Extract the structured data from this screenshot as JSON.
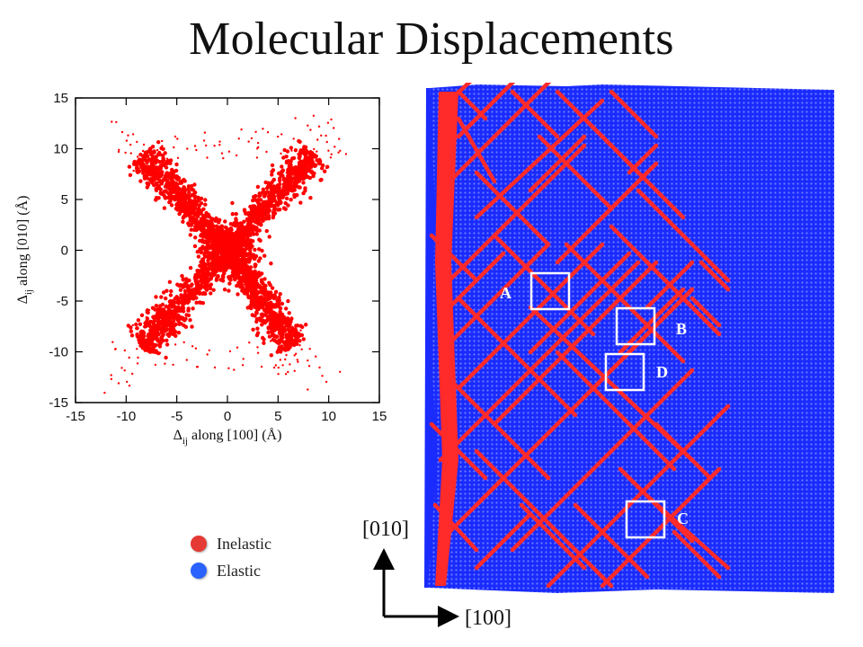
{
  "title": "Molecular Displacements",
  "legend": {
    "items": [
      {
        "label": "Inelastic",
        "color": "#e53935"
      },
      {
        "label": "Elastic",
        "color": "#2962ff"
      }
    ]
  },
  "directions": {
    "vertical_label": "[010]",
    "horizontal_label": "[100]"
  },
  "regions": [
    {
      "label": "A"
    },
    {
      "label": "B"
    },
    {
      "label": "C"
    },
    {
      "label": "D"
    }
  ],
  "colors": {
    "inelastic": "#ff2a2a",
    "elastic": "#1a2bff",
    "frame": "#000000",
    "box": "#ffffff"
  },
  "chart_data": {
    "type": "scatter",
    "xlabel_main": "Δ",
    "xlabel_sub": "ij",
    "xlabel_rest": " along [100] (Å)",
    "ylabel_main": "Δ",
    "ylabel_sub": "ij",
    "ylabel_rest": " along [010] (Å)",
    "xlim": [
      -15,
      15
    ],
    "ylim": [
      -15,
      15
    ],
    "xticks": [
      -15,
      -10,
      -5,
      0,
      5,
      10,
      15
    ],
    "yticks": [
      -15,
      -10,
      -5,
      0,
      5,
      10,
      15
    ],
    "grid": false,
    "series": [
      {
        "color": "#ff0000",
        "distribution": "X-shaped cluster along y = x and y = -x, dense near origin",
        "arm_extent_upper_left": [
          -8.5,
          9.5
        ],
        "arm_extent_upper_right": [
          8.5,
          9.5
        ],
        "arm_extent_lower_left": [
          -8.5,
          -9.5
        ],
        "arm_extent_lower_right": [
          6.5,
          -9.5
        ]
      }
    ]
  }
}
